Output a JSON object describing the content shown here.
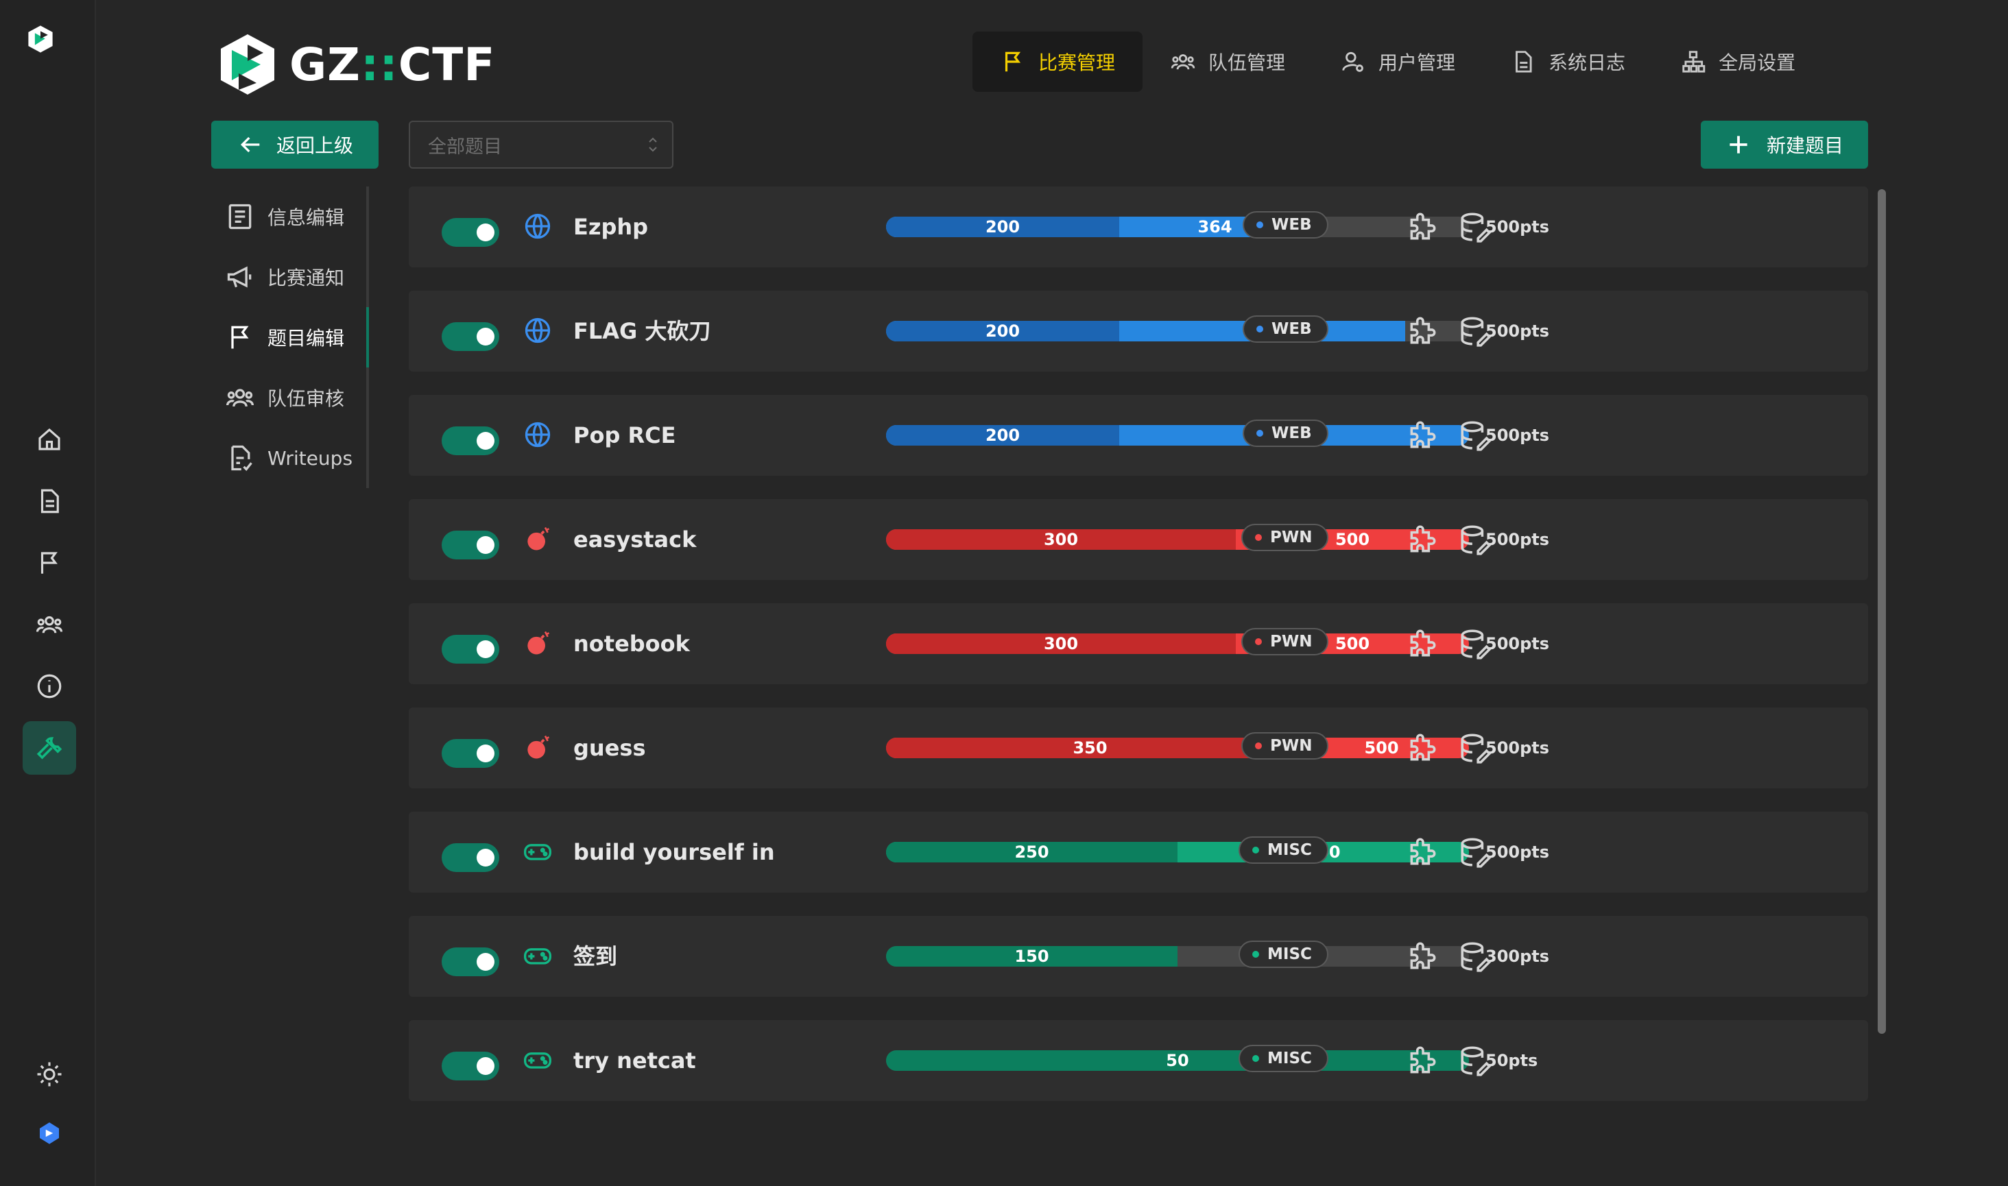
{
  "brand": {
    "prefix": "GZ",
    "sep": "::",
    "suffix": "CTF"
  },
  "topnav": [
    {
      "label": "比赛管理",
      "icon": "flag-icon",
      "active": true
    },
    {
      "label": "队伍管理",
      "icon": "users-icon"
    },
    {
      "label": "用户管理",
      "icon": "user-cog-icon"
    },
    {
      "label": "系统日志",
      "icon": "file-icon"
    },
    {
      "label": "全局设置",
      "icon": "sitemap-icon"
    }
  ],
  "toolbar": {
    "back_label": "返回上级",
    "select_placeholder": "全部题目",
    "new_label": "新建题目"
  },
  "sidemenu": [
    {
      "label": "信息编辑"
    },
    {
      "label": "比赛通知"
    },
    {
      "label": "题目编辑"
    },
    {
      "label": "队伍审核"
    },
    {
      "label": "Writeups"
    }
  ],
  "colors": {
    "accent": "#0f7b62",
    "web_dark": "#1c65b3",
    "web_light": "#2787e0",
    "pwn_dark": "#c42a2a",
    "pwn_light": "#ef3e3e",
    "misc_dark": "#0c7f5e",
    "misc_light": "#12a77a",
    "active_nav": "#f5d000"
  },
  "challenges": [
    {
      "title": "Ezphp",
      "category": "WEB",
      "min_score": "200",
      "current_score": "364",
      "max_score": 500,
      "min_value": 200,
      "current_value": 364,
      "points": "500pts"
    },
    {
      "title": "FLAG 大砍刀",
      "category": "WEB",
      "min_score": "200",
      "current_score": "445",
      "max_score": 500,
      "min_value": 200,
      "current_value": 445,
      "points": "500pts"
    },
    {
      "title": "Pop RCE",
      "category": "WEB",
      "min_score": "200",
      "current_score": "500",
      "max_score": 500,
      "min_value": 200,
      "current_value": 500,
      "points": "500pts"
    },
    {
      "title": "easystack",
      "category": "PWN",
      "min_score": "300",
      "current_score": "500",
      "max_score": 500,
      "min_value": 300,
      "current_value": 500,
      "points": "500pts"
    },
    {
      "title": "notebook",
      "category": "PWN",
      "min_score": "300",
      "current_score": "500",
      "max_score": 500,
      "min_value": 300,
      "current_value": 500,
      "points": "500pts"
    },
    {
      "title": "guess",
      "category": "PWN",
      "min_score": "350",
      "current_score": "500",
      "max_score": 500,
      "min_value": 350,
      "current_value": 500,
      "points": "500pts"
    },
    {
      "title": "build yourself in",
      "category": "MISC",
      "min_score": "250",
      "current_score": "500",
      "max_score": 500,
      "min_value": 250,
      "current_value": 500,
      "points": "500pts"
    },
    {
      "title": "签到",
      "category": "MISC",
      "min_score": "150",
      "current_score": "",
      "max_score": 300,
      "min_value": 150,
      "current_value": 150,
      "points": "300pts"
    },
    {
      "title": "try netcat",
      "category": "MISC",
      "min_score": "50",
      "current_score": "",
      "max_score": 50,
      "min_value": 50,
      "current_value": 50,
      "points": "50pts"
    }
  ]
}
